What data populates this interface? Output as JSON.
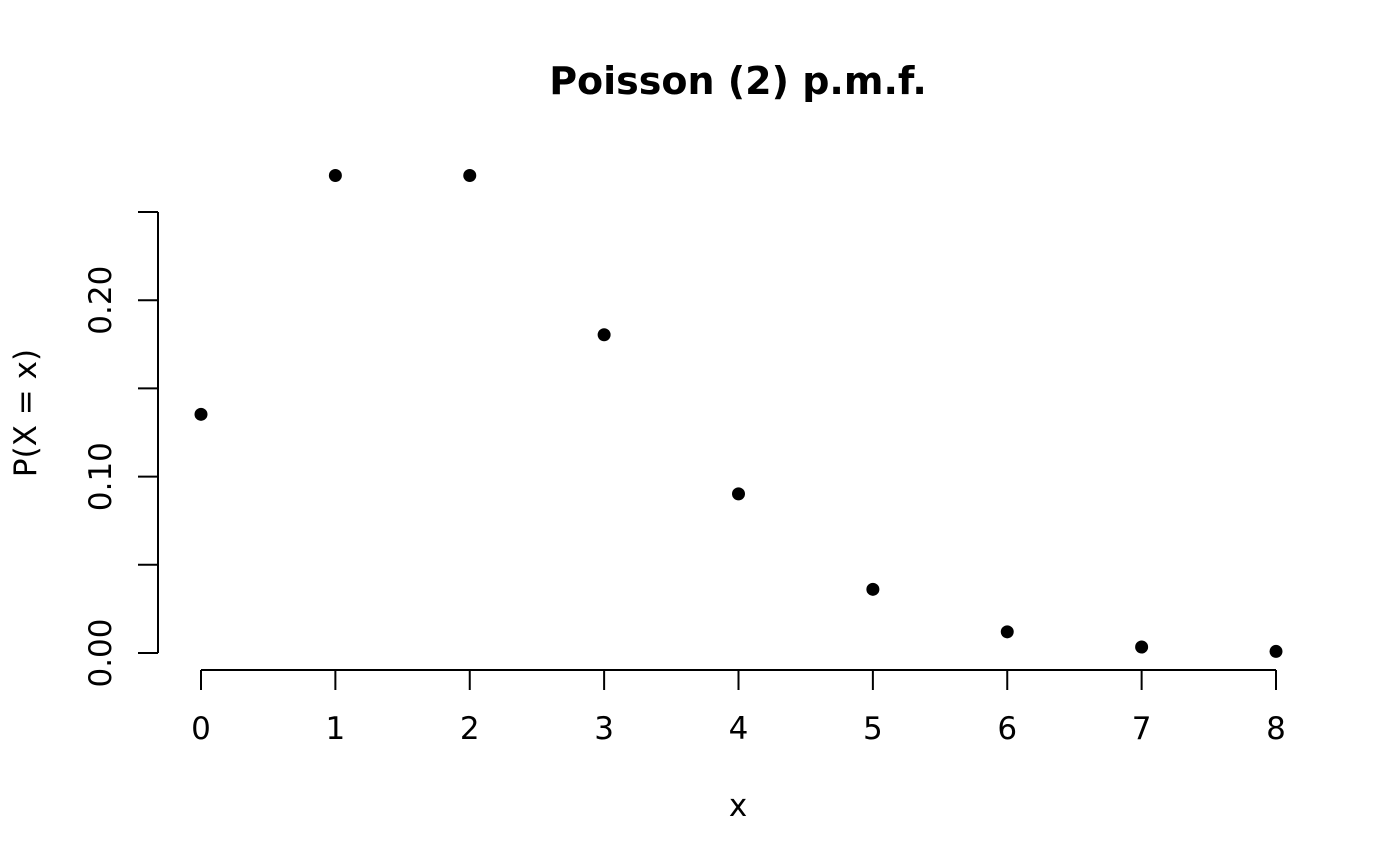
{
  "chart_data": {
    "type": "scatter",
    "title": "Poisson (2) p.m.f.",
    "xlabel": "x",
    "ylabel": "P(X = x)",
    "x": [
      0,
      1,
      2,
      3,
      4,
      5,
      6,
      7,
      8
    ],
    "y": [
      0.1353,
      0.2707,
      0.2707,
      0.1804,
      0.0902,
      0.0361,
      0.012,
      0.0034,
      0.0009
    ],
    "x_ticks": [
      "0",
      "1",
      "2",
      "3",
      "4",
      "5",
      "6",
      "7",
      "8"
    ],
    "y_ticks": [
      "0.00",
      "0.10",
      "0.20"
    ],
    "y_tick_values": [
      0,
      0.05,
      0.1,
      0.15,
      0.2,
      0.25
    ],
    "y_labeled_values": [
      0,
      0.1,
      0.2
    ],
    "xlim": [
      0,
      8
    ],
    "ylim": [
      0,
      0.25
    ],
    "grid": false,
    "point_color": "#000000"
  }
}
